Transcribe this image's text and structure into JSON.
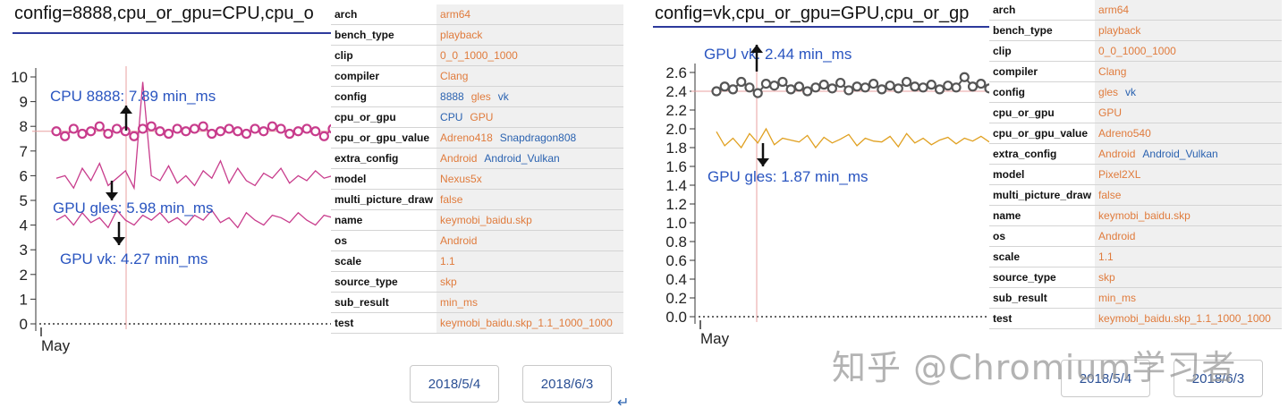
{
  "left": {
    "title": "config=8888,cpu_or_gpu=CPU,cpu_o",
    "info": [
      {
        "key": "arch",
        "values": [
          "arm64"
        ],
        "colors": [
          "orange"
        ]
      },
      {
        "key": "bench_type",
        "values": [
          "playback"
        ],
        "colors": [
          "orange"
        ]
      },
      {
        "key": "clip",
        "values": [
          "0_0_1000_1000"
        ],
        "colors": [
          "orange"
        ]
      },
      {
        "key": "compiler",
        "values": [
          "Clang"
        ],
        "colors": [
          "orange"
        ]
      },
      {
        "key": "config",
        "values": [
          "8888",
          "gles",
          "vk"
        ],
        "colors": [
          "blue",
          "orange",
          "blue"
        ]
      },
      {
        "key": "cpu_or_gpu",
        "values": [
          "CPU",
          "GPU"
        ],
        "colors": [
          "blue",
          "orange"
        ]
      },
      {
        "key": "cpu_or_gpu_value",
        "values": [
          "Adreno418",
          "Snapdragon808"
        ],
        "colors": [
          "orange",
          "blue"
        ]
      },
      {
        "key": "extra_config",
        "values": [
          "Android",
          "Android_Vulkan"
        ],
        "colors": [
          "orange",
          "blue"
        ]
      },
      {
        "key": "model",
        "values": [
          "Nexus5x"
        ],
        "colors": [
          "orange"
        ]
      },
      {
        "key": "multi_picture_draw",
        "values": [
          "false"
        ],
        "colors": [
          "orange"
        ]
      },
      {
        "key": "name",
        "values": [
          "keymobi_baidu.skp"
        ],
        "colors": [
          "orange"
        ]
      },
      {
        "key": "os",
        "values": [
          "Android"
        ],
        "colors": [
          "orange"
        ]
      },
      {
        "key": "scale",
        "values": [
          "1.1"
        ],
        "colors": [
          "orange"
        ]
      },
      {
        "key": "source_type",
        "values": [
          "skp"
        ],
        "colors": [
          "orange"
        ]
      },
      {
        "key": "sub_result",
        "values": [
          "min_ms"
        ],
        "colors": [
          "orange"
        ]
      },
      {
        "key": "test",
        "values": [
          "keymobi_baidu.skp_1.1_1000_1000"
        ],
        "colors": [
          "orange"
        ]
      }
    ],
    "buttons": [
      "2018/5/4",
      "2018/6/3"
    ],
    "annotations": [
      "CPU 8888: 7.89 min_ms",
      "GPU gles: 5.98 min_ms",
      "GPU vk: 4.27 min_ms"
    ]
  },
  "right": {
    "title": "config=vk,cpu_or_gpu=GPU,cpu_or_gp",
    "info": [
      {
        "key": "arch",
        "values": [
          "arm64"
        ],
        "colors": [
          "orange"
        ]
      },
      {
        "key": "bench_type",
        "values": [
          "playback"
        ],
        "colors": [
          "orange"
        ]
      },
      {
        "key": "clip",
        "values": [
          "0_0_1000_1000"
        ],
        "colors": [
          "orange"
        ]
      },
      {
        "key": "compiler",
        "values": [
          "Clang"
        ],
        "colors": [
          "orange"
        ]
      },
      {
        "key": "config",
        "values": [
          "gles",
          "vk"
        ],
        "colors": [
          "orange",
          "blue"
        ]
      },
      {
        "key": "cpu_or_gpu",
        "values": [
          "GPU"
        ],
        "colors": [
          "orange"
        ]
      },
      {
        "key": "cpu_or_gpu_value",
        "values": [
          "Adreno540"
        ],
        "colors": [
          "orange"
        ]
      },
      {
        "key": "extra_config",
        "values": [
          "Android",
          "Android_Vulkan"
        ],
        "colors": [
          "orange",
          "blue"
        ]
      },
      {
        "key": "model",
        "values": [
          "Pixel2XL"
        ],
        "colors": [
          "orange"
        ]
      },
      {
        "key": "multi_picture_draw",
        "values": [
          "false"
        ],
        "colors": [
          "orange"
        ]
      },
      {
        "key": "name",
        "values": [
          "keymobi_baidu.skp"
        ],
        "colors": [
          "orange"
        ]
      },
      {
        "key": "os",
        "values": [
          "Android"
        ],
        "colors": [
          "orange"
        ]
      },
      {
        "key": "scale",
        "values": [
          "1.1"
        ],
        "colors": [
          "orange"
        ]
      },
      {
        "key": "source_type",
        "values": [
          "skp"
        ],
        "colors": [
          "orange"
        ]
      },
      {
        "key": "sub_result",
        "values": [
          "min_ms"
        ],
        "colors": [
          "orange"
        ]
      },
      {
        "key": "test",
        "values": [
          "keymobi_baidu.skp_1.1_1000_1000"
        ],
        "colors": [
          "orange"
        ]
      }
    ],
    "buttons": [
      "2018/5/4",
      "2018/6/3"
    ],
    "annotations": [
      "GPU vk: 2.44 min_ms",
      "GPU gles: 1.87 min_ms"
    ]
  },
  "watermark": "知乎 @Chromium学习者",
  "colors": {
    "orange": "#e07b3c",
    "blue": "#2a62b0",
    "pink": "#c83c8c",
    "gold": "#e0a020",
    "grey": "#555555",
    "cursor": "#e8a0a0",
    "title_rule": "#2d3a9c"
  },
  "chart_data": [
    {
      "type": "line",
      "xlabel": "May",
      "ylim": [
        0,
        10
      ],
      "yticks": [
        "0",
        "1",
        "2",
        "3",
        "4",
        "5",
        "6",
        "7",
        "8",
        "9",
        "10"
      ],
      "cursor_y": 7.8,
      "series": [
        {
          "name": "CPU 8888",
          "color": "#c83c8c",
          "markers": true,
          "values": [
            7.8,
            7.6,
            7.9,
            7.7,
            7.8,
            8.0,
            7.7,
            7.9,
            7.8,
            7.6,
            7.9,
            8.0,
            7.8,
            7.7,
            7.9,
            7.8,
            7.9,
            8.0,
            7.7,
            7.8,
            7.9,
            7.8,
            7.7,
            7.9,
            7.8,
            8.0,
            7.9,
            7.7,
            7.8,
            7.9,
            7.8,
            7.6,
            7.9
          ]
        },
        {
          "name": "GPU gles",
          "color": "#c83c8c",
          "markers": false,
          "values": [
            5.9,
            6.0,
            5.5,
            6.3,
            5.8,
            6.5,
            5.6,
            5.9,
            6.2,
            5.5,
            9.8,
            6.0,
            5.8,
            6.4,
            5.7,
            6.0,
            5.6,
            6.2,
            5.9,
            6.6,
            5.7,
            6.3,
            5.8,
            5.6,
            6.1,
            5.9,
            6.3,
            5.7,
            6.0,
            5.8,
            6.2,
            5.9,
            6.0
          ]
        },
        {
          "name": "GPU vk",
          "color": "#c83c8c",
          "markers": false,
          "values": [
            4.2,
            4.4,
            4.0,
            4.5,
            4.1,
            4.3,
            3.9,
            4.6,
            4.2,
            4.0,
            4.4,
            4.2,
            4.5,
            4.1,
            4.3,
            4.0,
            4.4,
            4.2,
            4.6,
            4.1,
            4.3,
            3.9,
            4.5,
            4.2,
            4.0,
            4.4,
            4.3,
            4.1,
            4.5,
            4.2,
            4.0,
            4.4,
            4.3
          ]
        }
      ]
    },
    {
      "type": "line",
      "xlabel": "May",
      "ylim": [
        0,
        2.6
      ],
      "yticks": [
        "0.0",
        "0.2",
        "0.4",
        "0.6",
        "0.8",
        "1.0",
        "1.2",
        "1.4",
        "1.6",
        "1.8",
        "2.0",
        "2.2",
        "2.4",
        "2.6"
      ],
      "cursor_y": 2.4,
      "series": [
        {
          "name": "GPU vk",
          "color": "#555555",
          "markers": true,
          "values": [
            2.4,
            2.45,
            2.42,
            2.5,
            2.44,
            2.38,
            2.48,
            2.46,
            2.5,
            2.42,
            2.45,
            2.4,
            2.44,
            2.47,
            2.43,
            2.49,
            2.41,
            2.45,
            2.44,
            2.48,
            2.42,
            2.46,
            2.43,
            2.5,
            2.45,
            2.44,
            2.47,
            2.42,
            2.46,
            2.44,
            2.55,
            2.45,
            2.48,
            2.43
          ]
        },
        {
          "name": "GPU gles",
          "color": "#e0a020",
          "markers": false,
          "values": [
            1.97,
            1.82,
            1.9,
            1.8,
            1.95,
            1.85,
            2.0,
            1.83,
            1.9,
            1.88,
            1.86,
            1.93,
            1.8,
            1.91,
            1.85,
            1.89,
            1.94,
            1.82,
            1.9,
            1.87,
            1.86,
            1.92,
            1.81,
            1.95,
            1.85,
            1.9,
            1.83,
            1.88,
            1.91,
            1.84,
            1.9,
            1.87,
            1.92,
            1.86
          ]
        }
      ]
    }
  ]
}
